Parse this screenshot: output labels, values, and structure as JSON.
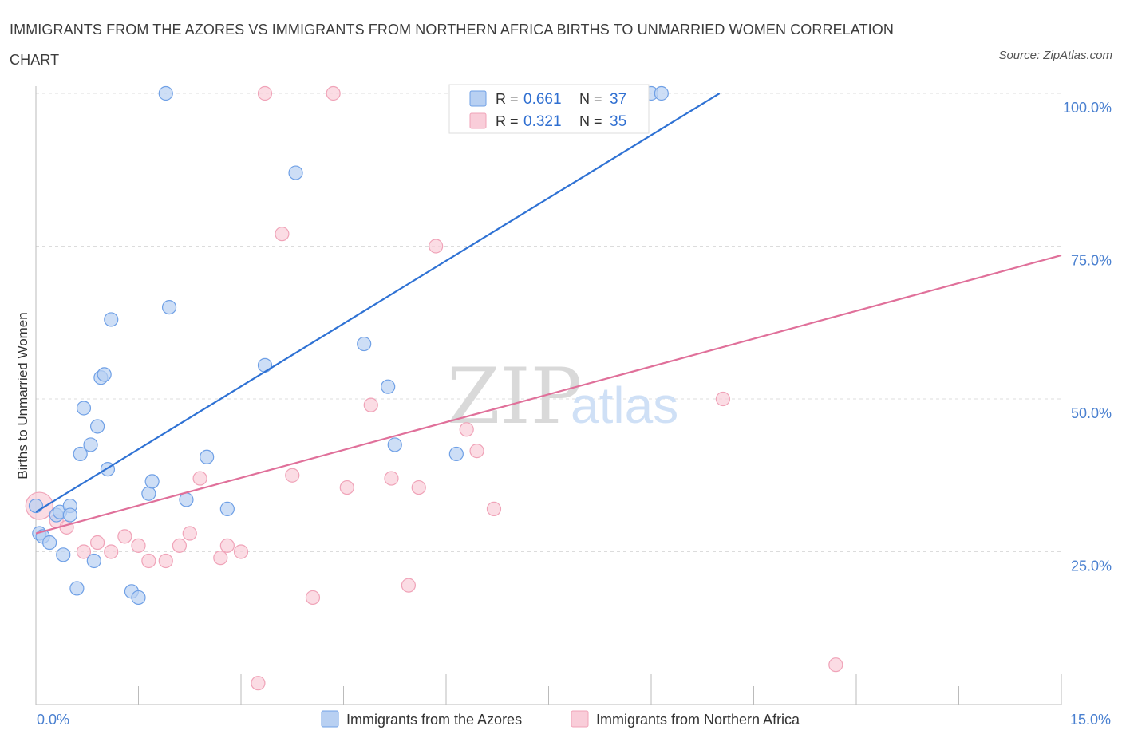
{
  "title": "IMMIGRANTS FROM THE AZORES VS IMMIGRANTS FROM NORTHERN AFRICA BIRTHS TO UNMARRIED WOMEN CORRELATION CHART",
  "source": "Source: ZipAtlas.com",
  "colors": {
    "azores": "#6fa0e6",
    "azores_line": "#2f72d4",
    "nafrica": "#f0a3b8",
    "nafrica_line": "#e0709a",
    "tick": "#4a80d0"
  },
  "legend": {
    "azores": {
      "r_label": "R =",
      "r_value": "0.661",
      "n_label": "N =",
      "n_value": "37"
    },
    "nafrica": {
      "r_label": "R =",
      "r_value": "0.321",
      "n_label": "N =",
      "n_value": "35"
    }
  },
  "chart_data": {
    "type": "scatter",
    "xlabel": "",
    "ylabel": "Births to Unmarried Women",
    "xlim": [
      0,
      15
    ],
    "ylim": [
      0,
      100
    ],
    "x_ticks": [
      "0.0%",
      "15.0%"
    ],
    "y_ticks": [
      "25.0%",
      "50.0%",
      "75.0%",
      "100.0%"
    ],
    "grid": true,
    "watermark": "ZIPatlas",
    "series": [
      {
        "name": "Immigrants from the Azores",
        "trend": {
          "x": [
            0.0,
            10.0
          ],
          "y": [
            31.5,
            100.0
          ]
        },
        "points": [
          [
            0.0,
            32.5
          ],
          [
            0.05,
            28.0
          ],
          [
            0.1,
            27.5
          ],
          [
            0.2,
            26.5
          ],
          [
            0.3,
            31.0
          ],
          [
            0.35,
            31.5
          ],
          [
            0.4,
            24.5
          ],
          [
            0.5,
            32.5
          ],
          [
            0.5,
            31.0
          ],
          [
            0.6,
            19.0
          ],
          [
            0.65,
            41.0
          ],
          [
            0.7,
            48.5
          ],
          [
            0.8,
            42.5
          ],
          [
            0.85,
            23.5
          ],
          [
            0.9,
            45.5
          ],
          [
            0.95,
            53.5
          ],
          [
            1.0,
            54.0
          ],
          [
            1.05,
            38.5
          ],
          [
            1.1,
            63.0
          ],
          [
            1.4,
            18.5
          ],
          [
            1.5,
            17.5
          ],
          [
            1.65,
            34.5
          ],
          [
            1.7,
            36.5
          ],
          [
            1.9,
            100.0
          ],
          [
            1.95,
            65.0
          ],
          [
            2.2,
            33.5
          ],
          [
            2.5,
            40.5
          ],
          [
            2.8,
            32.0
          ],
          [
            3.35,
            55.5
          ],
          [
            3.8,
            87.0
          ],
          [
            4.8,
            59.0
          ],
          [
            5.15,
            52.0
          ],
          [
            5.25,
            42.5
          ],
          [
            6.15,
            41.0
          ],
          [
            8.55,
            100.0
          ],
          [
            9.0,
            100.0
          ],
          [
            9.15,
            100.0
          ]
        ]
      },
      {
        "name": "Immigrants from Northern Africa",
        "trend": {
          "x": [
            0.0,
            15.0
          ],
          "y": [
            28.0,
            73.5
          ]
        },
        "points": [
          [
            0.05,
            32.5
          ],
          [
            0.3,
            30.0
          ],
          [
            0.45,
            29.0
          ],
          [
            0.7,
            25.0
          ],
          [
            0.9,
            26.5
          ],
          [
            1.1,
            25.0
          ],
          [
            1.3,
            27.5
          ],
          [
            1.5,
            26.0
          ],
          [
            1.65,
            23.5
          ],
          [
            1.9,
            23.5
          ],
          [
            2.1,
            26.0
          ],
          [
            2.25,
            28.0
          ],
          [
            2.4,
            37.0
          ],
          [
            2.7,
            24.0
          ],
          [
            2.8,
            26.0
          ],
          [
            3.0,
            25.0
          ],
          [
            3.25,
            3.5
          ],
          [
            3.35,
            100.0
          ],
          [
            3.6,
            77.0
          ],
          [
            3.75,
            37.5
          ],
          [
            4.35,
            100.0
          ],
          [
            4.05,
            17.5
          ],
          [
            4.55,
            35.5
          ],
          [
            4.9,
            49.0
          ],
          [
            5.2,
            37.0
          ],
          [
            5.45,
            19.5
          ],
          [
            5.6,
            35.5
          ],
          [
            5.85,
            75.0
          ],
          [
            6.3,
            45.0
          ],
          [
            6.45,
            41.5
          ],
          [
            6.7,
            32.0
          ],
          [
            8.0,
            100.0
          ],
          [
            8.55,
            100.0
          ],
          [
            10.05,
            50.0
          ],
          [
            11.7,
            6.5
          ]
        ]
      }
    ]
  },
  "bottom_legend": {
    "azores_label": "Immigrants from the Azores",
    "nafrica_label": "Immigrants from Northern Africa"
  }
}
